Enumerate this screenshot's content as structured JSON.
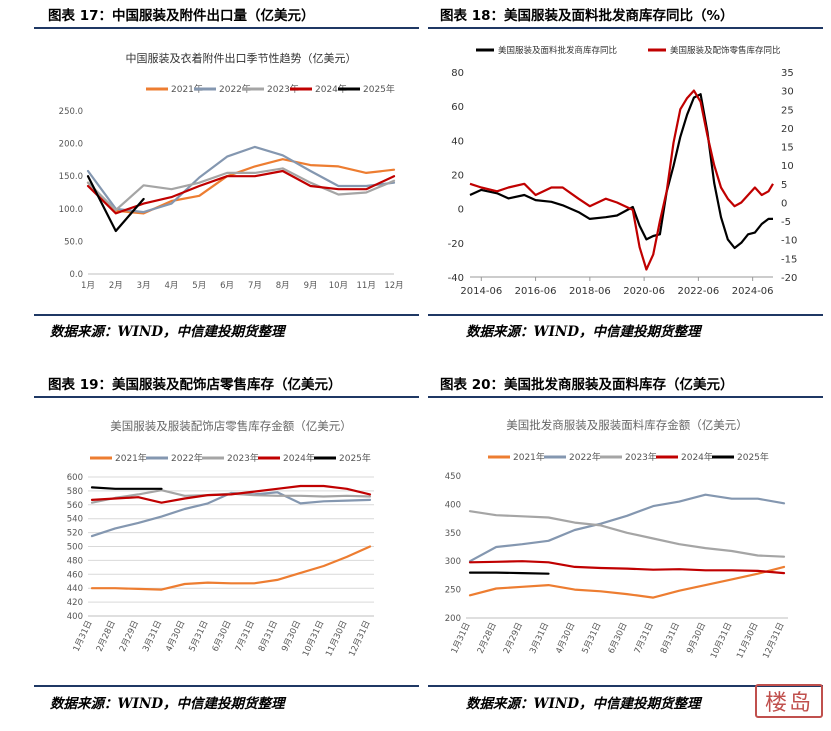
{
  "headers": {
    "h17": "图表 17：中国服装及附件出口量（亿美元）",
    "h18": "图表 18：美国服装及面料批发商库存同比（%）",
    "h19": "图表 19：美国服装及配饰店零售库存（亿美元）",
    "h20": "图表 20：美国批发商服装及面料库存（亿美元）"
  },
  "sources": {
    "s1": "数据来源：WIND，中信建投期货整理",
    "s2": "数据来源：WIND，中信建投期货整理",
    "s3": "数据来源：WIND，中信建投期货整理",
    "s4": "数据来源：WIND，中信建投期货整理"
  },
  "stamp_text": "楼岛",
  "chart_data": [
    {
      "type": "line",
      "title": "中国服装及衣着附件出口季节性趋势（亿美元）",
      "categories": [
        "1月",
        "2月",
        "3月",
        "4月",
        "5月",
        "6月",
        "7月",
        "8月",
        "9月",
        "10月",
        "11月",
        "12月"
      ],
      "ylim": [
        0,
        250
      ],
      "yticks": [
        "0.0",
        "50.0",
        "100.0",
        "150.0",
        "200.0",
        "250.0"
      ],
      "grid": false,
      "legend": "top",
      "series": [
        {
          "name": "2021年",
          "color": "#ed7d31",
          "values": [
            140,
            97,
            93,
            112,
            120,
            150,
            165,
            176,
            167,
            165,
            155,
            160
          ]
        },
        {
          "name": "2022年",
          "color": "#8497b0",
          "values": [
            158,
            100,
            95,
            108,
            148,
            180,
            195,
            182,
            158,
            135,
            135,
            140
          ]
        },
        {
          "name": "2023年",
          "color": "#a5a5a5",
          "values": [
            140,
            98,
            136,
            130,
            140,
            155,
            155,
            162,
            140,
            122,
            125,
            143
          ]
        },
        {
          "name": "2024年",
          "color": "#c00000",
          "values": [
            135,
            93,
            108,
            118,
            135,
            150,
            150,
            158,
            135,
            130,
            130,
            150
          ]
        },
        {
          "name": "2025年",
          "color": "#000000",
          "values": [
            150,
            66,
            115,
            null,
            null,
            null,
            null,
            null,
            null,
            null,
            null,
            null
          ]
        }
      ]
    },
    {
      "type": "line",
      "title": "",
      "legend": "top",
      "x_ticks": [
        "2014-06",
        "2016-06",
        "2018-06",
        "2020-06",
        "2022-06",
        "2024-06"
      ],
      "x_range": [
        "2014-01",
        "2025-03"
      ],
      "left_axis": {
        "ylim": [
          -40,
          80
        ],
        "ticks": [
          "-40",
          "-20",
          "0",
          "20",
          "40",
          "60",
          "80"
        ]
      },
      "right_axis": {
        "ylim": [
          -20,
          35
        ],
        "ticks": [
          "-20",
          "-15",
          "-10",
          "-5",
          "0",
          "5",
          "10",
          "15",
          "20",
          "25",
          "30",
          "35"
        ]
      },
      "series": [
        {
          "name": "美国服装及面料批发商库存同比",
          "color": "#000000",
          "axis": "left",
          "x": [
            "2014-01",
            "2014-06",
            "2015-01",
            "2015-06",
            "2016-01",
            "2016-06",
            "2017-01",
            "2017-06",
            "2018-01",
            "2018-06",
            "2019-01",
            "2019-06",
            "2020-01",
            "2020-04",
            "2020-07",
            "2020-10",
            "2021-01",
            "2021-04",
            "2021-07",
            "2021-10",
            "2022-01",
            "2022-04",
            "2022-07",
            "2022-10",
            "2023-01",
            "2023-04",
            "2023-07",
            "2023-10",
            "2024-01",
            "2024-04",
            "2024-07",
            "2024-10",
            "2025-01",
            "2025-03"
          ],
          "y": [
            8,
            11,
            9,
            6,
            8,
            5,
            4,
            2,
            -2,
            -6,
            -5,
            -4,
            1,
            -10,
            -18,
            -16,
            -15,
            10,
            25,
            42,
            55,
            65,
            67,
            45,
            15,
            -5,
            -18,
            -23,
            -20,
            -15,
            -14,
            -9,
            -6,
            -6
          ]
        },
        {
          "name": "美国服装及配饰零售库存同比",
          "color": "#c00000",
          "axis": "right",
          "x": [
            "2014-01",
            "2014-06",
            "2015-01",
            "2015-06",
            "2016-01",
            "2016-06",
            "2017-01",
            "2017-06",
            "2018-01",
            "2018-06",
            "2019-01",
            "2019-06",
            "2020-01",
            "2020-04",
            "2020-07",
            "2020-10",
            "2021-01",
            "2021-04",
            "2021-07",
            "2021-10",
            "2022-01",
            "2022-04",
            "2022-07",
            "2022-10",
            "2023-01",
            "2023-04",
            "2023-07",
            "2023-10",
            "2024-01",
            "2024-04",
            "2024-07",
            "2024-10",
            "2025-01",
            "2025-03"
          ],
          "y": [
            5,
            4,
            3,
            4,
            5,
            2,
            4,
            4,
            1,
            -1,
            1,
            0,
            -2,
            -12,
            -18,
            -14,
            -5,
            3,
            16,
            25,
            28,
            30,
            27,
            18,
            10,
            4,
            1,
            -1,
            0,
            2,
            4,
            2,
            3,
            5
          ]
        }
      ]
    },
    {
      "type": "line",
      "title": "美国服装及服装配饰店零售库存金额（亿美元）",
      "categories": [
        "1月31日",
        "2月28日",
        "2月29日",
        "3月31日",
        "4月30日",
        "5月31日",
        "6月30日",
        "7月31日",
        "8月31日",
        "9月30日",
        "10月31日",
        "11月30日",
        "12月31日"
      ],
      "ylim": [
        400,
        600
      ],
      "yticks": [
        "400",
        "420",
        "440",
        "460",
        "480",
        "500",
        "520",
        "540",
        "560",
        "580",
        "600"
      ],
      "grid": true,
      "legend": "top",
      "series": [
        {
          "name": "2021年",
          "color": "#ed7d31",
          "values": [
            440,
            440,
            439,
            438,
            446,
            448,
            447,
            447,
            452,
            462,
            472,
            485,
            500
          ]
        },
        {
          "name": "2022年",
          "color": "#8497b0",
          "values": [
            515,
            526,
            534,
            543,
            554,
            562,
            577,
            575,
            578,
            562,
            565,
            566,
            567
          ]
        },
        {
          "name": "2023年",
          "color": "#a5a5a5",
          "values": [
            563,
            570,
            575,
            581,
            573,
            574,
            576,
            574,
            573,
            573,
            572,
            573,
            572
          ]
        },
        {
          "name": "2024年",
          "color": "#c00000",
          "values": [
            567,
            569,
            571,
            563,
            569,
            574,
            575,
            579,
            583,
            587,
            587,
            583,
            575
          ]
        },
        {
          "name": "2025年",
          "color": "#000000",
          "values": [
            585,
            583,
            583,
            583,
            null,
            null,
            null,
            null,
            null,
            null,
            null,
            null,
            null
          ]
        }
      ]
    },
    {
      "type": "line",
      "title": "美国批发商服装及服装面料库存金额（亿美元）",
      "categories": [
        "1月31日",
        "2月28日",
        "2月29日",
        "3月31日",
        "4月30日",
        "5月31日",
        "6月30日",
        "7月31日",
        "8月31日",
        "9月30日",
        "10月31日",
        "11月30日",
        "12月31日"
      ],
      "ylim": [
        200,
        450
      ],
      "yticks": [
        "200",
        "250",
        "300",
        "350",
        "400",
        "450"
      ],
      "grid": false,
      "legend": "top",
      "series": [
        {
          "name": "2021年",
          "color": "#ed7d31",
          "values": [
            240,
            252,
            255,
            258,
            250,
            247,
            242,
            236,
            248,
            258,
            268,
            278,
            290
          ]
        },
        {
          "name": "2022年",
          "color": "#8497b0",
          "values": [
            300,
            325,
            330,
            336,
            355,
            366,
            380,
            397,
            405,
            417,
            410,
            410,
            402
          ]
        },
        {
          "name": "2023年",
          "color": "#a5a5a5",
          "values": [
            388,
            381,
            379,
            377,
            368,
            363,
            350,
            340,
            330,
            323,
            318,
            310,
            308
          ]
        },
        {
          "name": "2024年",
          "color": "#c00000",
          "values": [
            298,
            299,
            300,
            298,
            290,
            288,
            287,
            285,
            286,
            284,
            284,
            283,
            279
          ]
        },
        {
          "name": "2025年",
          "color": "#000000",
          "values": [
            280,
            280,
            279,
            278,
            null,
            null,
            null,
            null,
            null,
            null,
            null,
            null,
            null
          ]
        }
      ]
    }
  ]
}
